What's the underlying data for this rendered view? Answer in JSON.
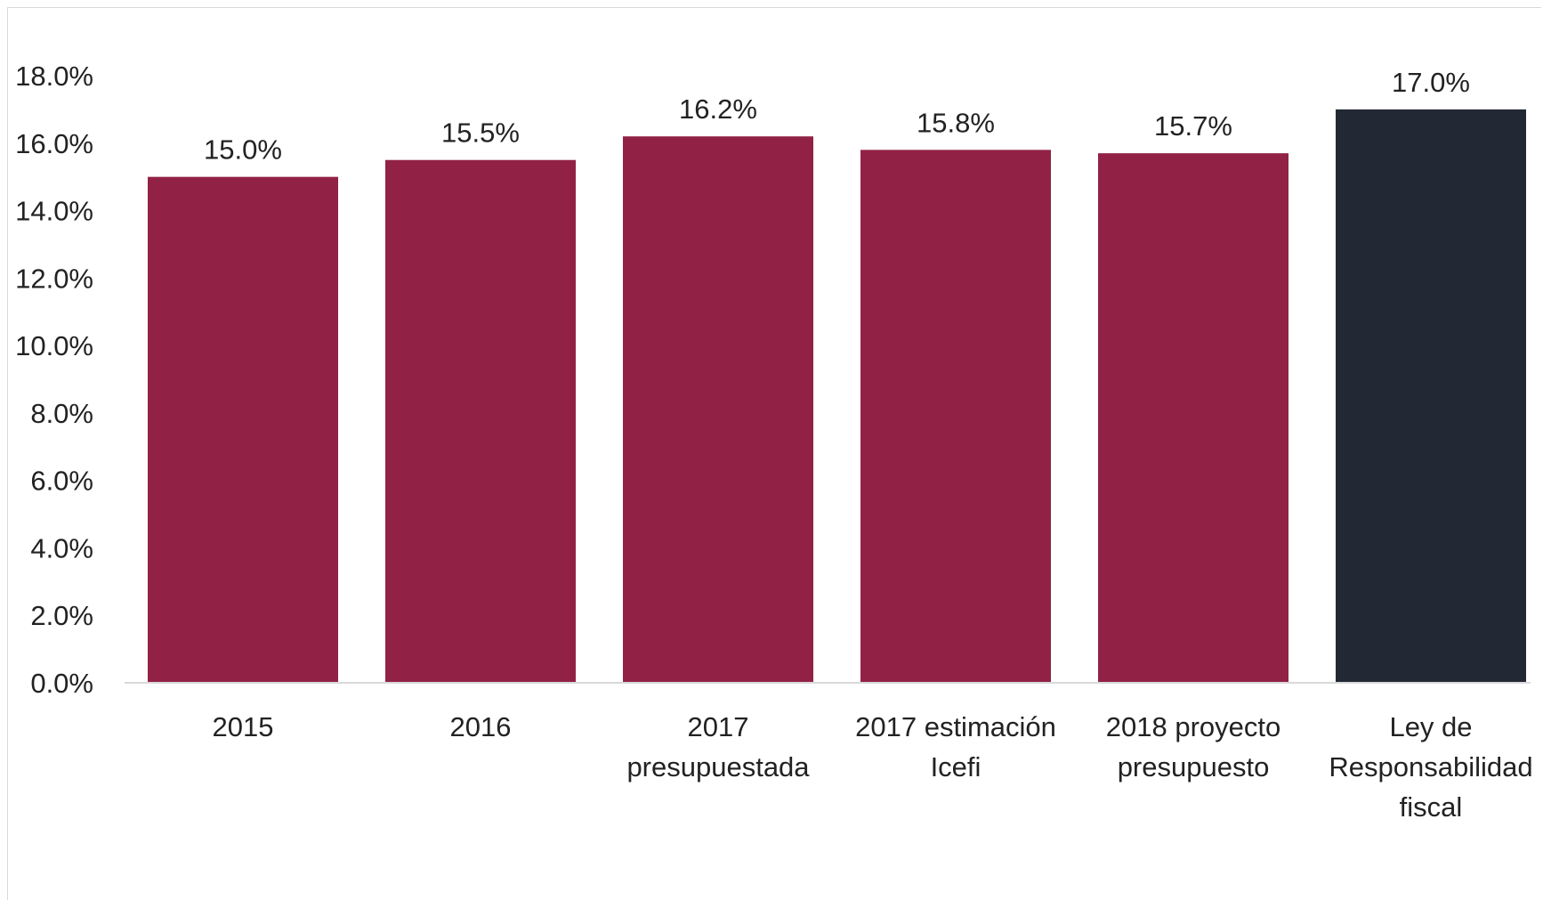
{
  "chart_data": {
    "type": "bar",
    "categories": [
      [
        "2015"
      ],
      [
        "2016"
      ],
      [
        "2017",
        "presupuestada"
      ],
      [
        "2017 estimación",
        "Icefi"
      ],
      [
        "2018 proyecto",
        "presupuesto"
      ],
      [
        "Ley de",
        "Responsabilidad",
        "fiscal"
      ]
    ],
    "values": [
      15.0,
      15.5,
      16.2,
      15.8,
      15.7,
      17.0
    ],
    "data_labels": [
      "15.0%",
      "15.5%",
      "16.2%",
      "15.8%",
      "15.7%",
      "17.0%"
    ],
    "bar_colors": [
      "#922245",
      "#922245",
      "#922245",
      "#922245",
      "#922245",
      "#232934"
    ],
    "ylim": [
      0,
      18
    ],
    "yticks": [
      0,
      2,
      4,
      6,
      8,
      10,
      12,
      14,
      16,
      18
    ],
    "ytick_labels": [
      "0.0%",
      "2.0%",
      "4.0%",
      "6.0%",
      "8.0%",
      "10.0%",
      "12.0%",
      "14.0%",
      "16.0%",
      "18.0%"
    ],
    "grid": false,
    "legend": "none",
    "title": "",
    "xlabel": "",
    "ylabel": ""
  },
  "colors": {
    "primary_bar": "#922245",
    "highlight_bar": "#232934",
    "axis_line": "#d9d9d9",
    "text": "#222222"
  }
}
